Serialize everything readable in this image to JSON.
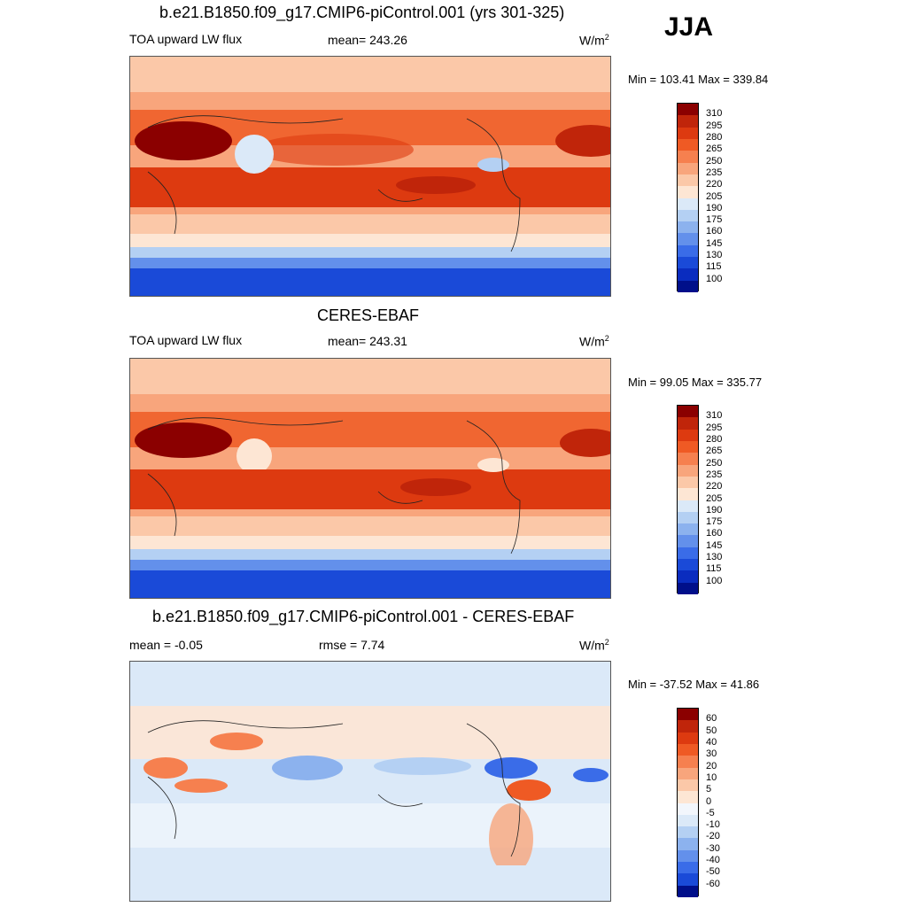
{
  "season": "JJA",
  "panel1": {
    "title": "b.e21.B1850.f09_g17.CMIP6-piControl.001 (yrs 301-325)",
    "variable": "TOA upward LW flux",
    "mean_text": "mean= 243.26",
    "units": "W/m",
    "units_sup": "2",
    "minmax": "Min = 103.41 Max = 339.84"
  },
  "panel2": {
    "title": "CERES-EBAF",
    "variable": "TOA upward LW flux",
    "mean_text": "mean= 243.31",
    "units": "W/m",
    "units_sup": "2",
    "minmax": "Min =  99.05 Max = 335.77"
  },
  "panel3": {
    "title": "b.e21.B1850.f09_g17.CMIP6-piControl.001 - CERES-EBAF",
    "mean_text": "mean =  -0.05",
    "rmse_text": "rmse =   7.74",
    "units": "W/m",
    "units_sup": "2",
    "minmax": "Min = -37.52 Max =  41.86"
  },
  "colorbar_abs": {
    "labels": [
      "310",
      "295",
      "280",
      "265",
      "250",
      "235",
      "220",
      "205",
      "190",
      "175",
      "160",
      "145",
      "130",
      "115",
      "100"
    ],
    "colors": [
      "#8b0000",
      "#c0250a",
      "#dd3a10",
      "#ef5a24",
      "#f6804f",
      "#f8a57c",
      "#fbc8a8",
      "#fde6d4",
      "#dbe9f8",
      "#b4d0f3",
      "#8cb2ee",
      "#6390eb",
      "#3a6ce8",
      "#1a4ad8",
      "#0a2cbf",
      "#000f8a"
    ]
  },
  "colorbar_diff": {
    "labels": [
      "60",
      "50",
      "40",
      "30",
      "20",
      "10",
      "5",
      "0",
      "-5",
      "-10",
      "-20",
      "-30",
      "-40",
      "-50",
      "-60"
    ],
    "colors": [
      "#8b0000",
      "#c0250a",
      "#dd3a10",
      "#ef5a24",
      "#f6804f",
      "#f8a57c",
      "#fbc8a8",
      "#fde6d4",
      "#f2f6fc",
      "#dbe9f8",
      "#b4d0f3",
      "#8cb2ee",
      "#6390eb",
      "#3a6ce8",
      "#1a4ad8",
      "#000f8a"
    ]
  }
}
